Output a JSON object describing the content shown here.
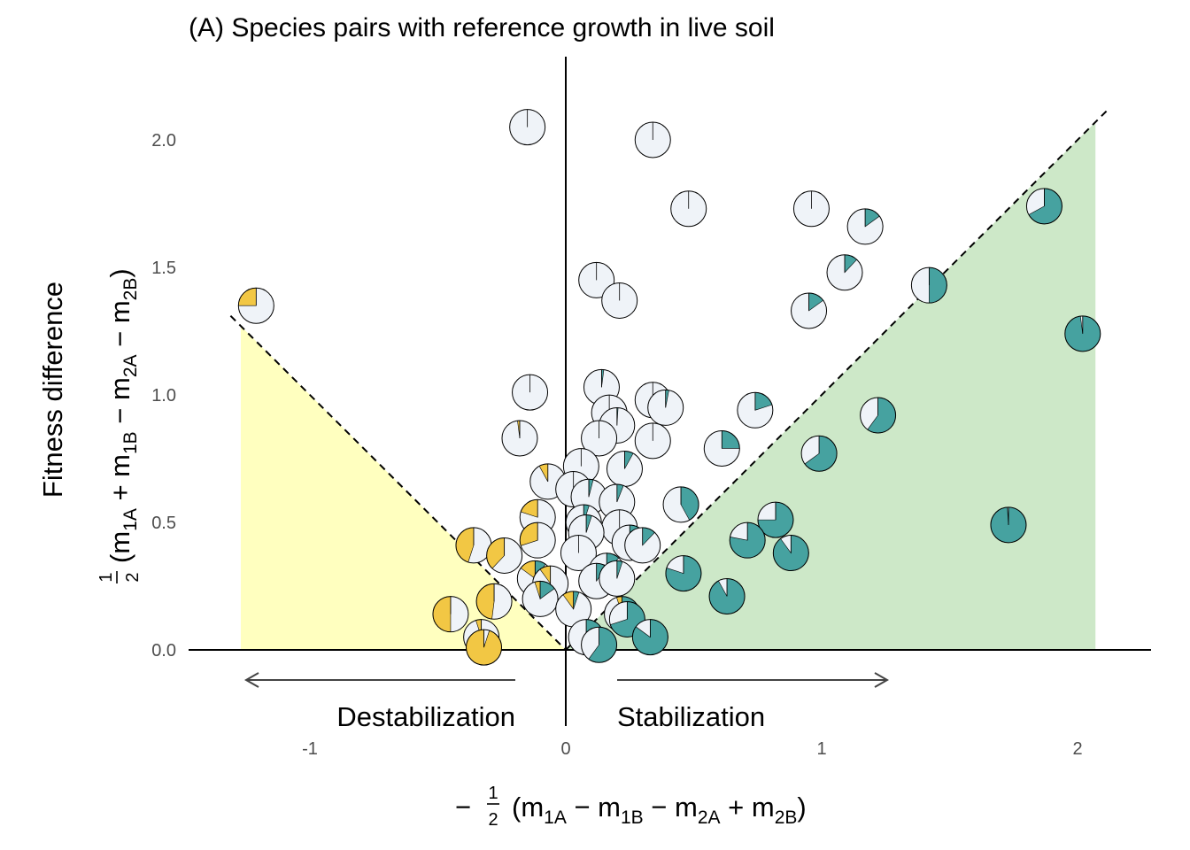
{
  "chart_data": {
    "type": "scatter",
    "title": "(A) Species pairs with reference growth in live soil",
    "ylabel_top": "Fitness difference",
    "xlim": [
      -1.4,
      2.3
    ],
    "ylim": [
      -0.3,
      2.3
    ],
    "x_ticks": [
      {
        "value": -1,
        "label": "-1"
      },
      {
        "value": 0,
        "label": "0"
      },
      {
        "value": 1,
        "label": "1"
      },
      {
        "value": 2,
        "label": "2"
      }
    ],
    "y_ticks": [
      {
        "value": 0,
        "label": "0.0"
      },
      {
        "value": 0.5,
        "label": "0.5"
      },
      {
        "value": 1,
        "label": "1.0"
      },
      {
        "value": 1.5,
        "label": "1.5"
      },
      {
        "value": 2,
        "label": "2.0"
      }
    ],
    "annotations": {
      "left": "Destabilization",
      "right": "Stabilization"
    },
    "regions": [
      {
        "name": "destabilization",
        "color": "#ffffbf",
        "vertices": [
          [
            -1.27,
            0
          ],
          [
            -1.27,
            1.27
          ],
          [
            0,
            0
          ]
        ]
      },
      {
        "name": "stabilization",
        "color": "#cde8c8",
        "vertices": [
          [
            0,
            0
          ],
          [
            2.07,
            2.07
          ],
          [
            2.07,
            0
          ]
        ]
      }
    ],
    "pie_colors": {
      "teal": "#46a2a0",
      "yellow": "#f2c744",
      "white": "#eff3f8"
    },
    "points": [
      {
        "x": -0.15,
        "y": 2.05,
        "teal": 0,
        "yellow": 0
      },
      {
        "x": 0.34,
        "y": 2.0,
        "teal": 0,
        "yellow": 0
      },
      {
        "x": 0.48,
        "y": 1.73,
        "teal": 0,
        "yellow": 0
      },
      {
        "x": 0.96,
        "y": 1.73,
        "teal": 0,
        "yellow": 0
      },
      {
        "x": 1.17,
        "y": 1.66,
        "teal": 0.15,
        "yellow": 0
      },
      {
        "x": 1.87,
        "y": 1.74,
        "teal": 0.67,
        "yellow": 0
      },
      {
        "x": -1.21,
        "y": 1.35,
        "teal": 0,
        "yellow": 0.25
      },
      {
        "x": 0.12,
        "y": 1.45,
        "teal": 0,
        "yellow": 0
      },
      {
        "x": 0.21,
        "y": 1.37,
        "teal": 0,
        "yellow": 0
      },
      {
        "x": 1.09,
        "y": 1.48,
        "teal": 0.12,
        "yellow": 0
      },
      {
        "x": 0.95,
        "y": 1.33,
        "teal": 0.15,
        "yellow": 0
      },
      {
        "x": 1.42,
        "y": 1.43,
        "teal": 0.5,
        "yellow": 0
      },
      {
        "x": 2.02,
        "y": 1.24,
        "teal": 0.98,
        "yellow": 0
      },
      {
        "x": -0.14,
        "y": 1.01,
        "teal": 0,
        "yellow": 0
      },
      {
        "x": 0.14,
        "y": 1.03,
        "teal": 0.02,
        "yellow": 0
      },
      {
        "x": 0.34,
        "y": 0.98,
        "teal": 0,
        "yellow": 0
      },
      {
        "x": 0.39,
        "y": 0.95,
        "teal": 0.03,
        "yellow": 0
      },
      {
        "x": 0.74,
        "y": 0.94,
        "teal": 0.2,
        "yellow": 0
      },
      {
        "x": 0.17,
        "y": 0.93,
        "teal": 0,
        "yellow": 0
      },
      {
        "x": 0.2,
        "y": 0.88,
        "teal": 0.01,
        "yellow": 0
      },
      {
        "x": -0.18,
        "y": 0.83,
        "teal": 0,
        "yellow": 0.02
      },
      {
        "x": 0.13,
        "y": 0.83,
        "teal": 0,
        "yellow": 0
      },
      {
        "x": 0.34,
        "y": 0.82,
        "teal": 0,
        "yellow": 0
      },
      {
        "x": 1.22,
        "y": 0.92,
        "teal": 0.6,
        "yellow": 0
      },
      {
        "x": 0.61,
        "y": 0.79,
        "teal": 0.25,
        "yellow": 0
      },
      {
        "x": 0.99,
        "y": 0.77,
        "teal": 0.65,
        "yellow": 0
      },
      {
        "x": 0.06,
        "y": 0.72,
        "teal": 0,
        "yellow": 0
      },
      {
        "x": 0.23,
        "y": 0.71,
        "teal": 0.08,
        "yellow": 0
      },
      {
        "x": -0.07,
        "y": 0.66,
        "teal": 0,
        "yellow": 0.08
      },
      {
        "x": 0.03,
        "y": 0.63,
        "teal": 0,
        "yellow": 0
      },
      {
        "x": 0.09,
        "y": 0.6,
        "teal": 0.04,
        "yellow": 0
      },
      {
        "x": 0.2,
        "y": 0.58,
        "teal": 0.06,
        "yellow": 0
      },
      {
        "x": 0.45,
        "y": 0.57,
        "teal": 0.42,
        "yellow": 0
      },
      {
        "x": -0.11,
        "y": 0.52,
        "teal": 0,
        "yellow": 0.2
      },
      {
        "x": 0.07,
        "y": 0.5,
        "teal": 0.05,
        "yellow": 0
      },
      {
        "x": 0.21,
        "y": 0.48,
        "teal": 0,
        "yellow": 0
      },
      {
        "x": 0.08,
        "y": 0.46,
        "teal": 0.05,
        "yellow": 0
      },
      {
        "x": -0.11,
        "y": 0.43,
        "teal": 0,
        "yellow": 0.3
      },
      {
        "x": 0.25,
        "y": 0.42,
        "teal": 0.15,
        "yellow": 0
      },
      {
        "x": 0.3,
        "y": 0.41,
        "teal": 0.12,
        "yellow": 0
      },
      {
        "x": -0.36,
        "y": 0.41,
        "teal": 0,
        "yellow": 0.45
      },
      {
        "x": -0.24,
        "y": 0.37,
        "teal": 0,
        "yellow": 0.38
      },
      {
        "x": 0.05,
        "y": 0.38,
        "teal": 0,
        "yellow": 0
      },
      {
        "x": 0.82,
        "y": 0.51,
        "teal": 0.75,
        "yellow": 0
      },
      {
        "x": 0.71,
        "y": 0.43,
        "teal": 0.78,
        "yellow": 0
      },
      {
        "x": 0.88,
        "y": 0.38,
        "teal": 0.9,
        "yellow": 0
      },
      {
        "x": 1.73,
        "y": 0.49,
        "teal": 0.99,
        "yellow": 0
      },
      {
        "x": 0.16,
        "y": 0.31,
        "teal": 0.12,
        "yellow": 0
      },
      {
        "x": 0.46,
        "y": 0.3,
        "teal": 0.8,
        "yellow": 0
      },
      {
        "x": -0.12,
        "y": 0.28,
        "teal": 0.1,
        "yellow": 0.15
      },
      {
        "x": -0.06,
        "y": 0.26,
        "teal": 0,
        "yellow": 0.1
      },
      {
        "x": 0.12,
        "y": 0.27,
        "teal": 0.1,
        "yellow": 0
      },
      {
        "x": 0.2,
        "y": 0.28,
        "teal": 0.05,
        "yellow": 0
      },
      {
        "x": 0.63,
        "y": 0.21,
        "teal": 0.92,
        "yellow": 0
      },
      {
        "x": -0.1,
        "y": 0.2,
        "teal": 0.15,
        "yellow": 0.05
      },
      {
        "x": -0.28,
        "y": 0.19,
        "teal": 0,
        "yellow": 0.48
      },
      {
        "x": 0.03,
        "y": 0.16,
        "teal": 0.05,
        "yellow": 0.1
      },
      {
        "x": 0.22,
        "y": 0.14,
        "teal": 0.5,
        "yellow": 0.05
      },
      {
        "x": 0.24,
        "y": 0.12,
        "teal": 0.7,
        "yellow": 0
      },
      {
        "x": -0.45,
        "y": 0.14,
        "teal": 0,
        "yellow": 0.5
      },
      {
        "x": -0.33,
        "y": 0.05,
        "teal": 0,
        "yellow": 0.05
      },
      {
        "x": 0.08,
        "y": 0.05,
        "teal": 0.4,
        "yellow": 0
      },
      {
        "x": 0.13,
        "y": 0.02,
        "teal": 0.6,
        "yellow": 0
      },
      {
        "x": 0.33,
        "y": 0.05,
        "teal": 0.85,
        "yellow": 0
      },
      {
        "x": -0.32,
        "y": 0.01,
        "teal": 0,
        "yellow": 0.95
      }
    ]
  }
}
